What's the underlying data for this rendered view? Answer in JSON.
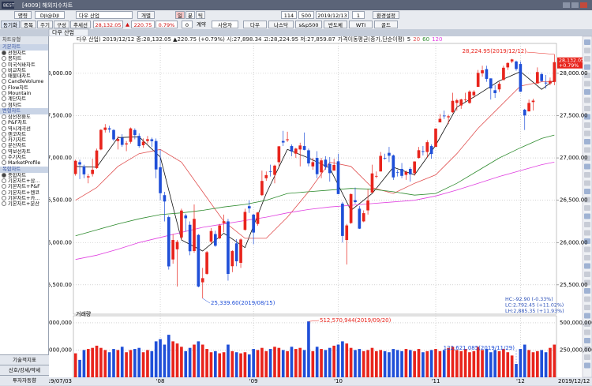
{
  "window": {
    "brand": "BEST",
    "title": "[4009] 해외지수차트"
  },
  "toolbar": {
    "row1": [
      "명령",
      "DJI@DJI",
      "다우 산업",
      "개별",
      "일",
      "분",
      "틱",
      "114",
      "500",
      "2019/12/13",
      "1",
      "환경설정"
    ],
    "row2": [
      "동기화",
      "종목",
      "주기",
      "구성",
      "추세선",
      "28,132.05",
      "▲",
      "220.75",
      "0.79%",
      "0",
      "계약",
      "사용자",
      "다우",
      "나스닥",
      "s&p500",
      "반도체",
      "WTI",
      "골드"
    ]
  },
  "tab": "다우 산업",
  "sidebar": {
    "header": "차트유형",
    "sections": [
      {
        "title": "기본차트",
        "items": [
          "선형차트",
          "봉차트",
          "미국식바차트",
          "비교차트",
          "매물대차트",
          "CandleVolume",
          "Flow차트",
          "Mountain",
          "계단차트",
          "점차트"
        ]
      },
      {
        "title": "변형차트",
        "items": [
          "삼선전환도",
          "P&F차트",
          "역시계곡선",
          "렌코차트",
          "카기차트",
          "분산차트",
          "역보선차트",
          "주기차트",
          "MarketProfile"
        ]
      },
      {
        "title": "복합차트",
        "items": [
          "종합차트",
          "기본차트+삼...",
          "기본차트+P&F",
          "기본차트+렌코",
          "기본차트+카...",
          "기본차트+분산"
        ]
      }
    ],
    "buttons": [
      "기술적지표",
      "신호/강세/약세",
      "투자자동향"
    ]
  },
  "chart_data": {
    "type": "candlestick",
    "title": "다우 산업) 2019/12/12 종:28,132.05 ▲220.75 (+0.79%) 시:27,898.34 고:28,224.95 저:27,859.87",
    "ma_label": "가격이동평균(종가,단순이평)",
    "up_color": "#e8241c",
    "down_color": "#1f4fd8",
    "grid": true,
    "ylim": [
      25200,
      28400
    ],
    "yticks": [
      {
        "value": 25500,
        "label": "25,500.00"
      },
      {
        "value": 26000,
        "label": "26,000.00"
      },
      {
        "value": 26500,
        "label": "26,500.00"
      },
      {
        "value": 27000,
        "label": "27,000.00"
      },
      {
        "value": 27500,
        "label": "27,500.00"
      },
      {
        "value": 28000,
        "label": "28,000.00"
      }
    ],
    "categories": [
      "2019/07/03",
      null,
      null,
      null,
      null,
      null,
      null,
      null,
      null,
      null,
      null,
      null,
      null,
      null,
      null,
      null,
      null,
      null,
      null,
      null,
      "'08",
      null,
      null,
      null,
      null,
      null,
      null,
      null,
      null,
      null,
      null,
      null,
      null,
      null,
      null,
      null,
      null,
      null,
      null,
      null,
      null,
      null,
      "'09",
      null,
      null,
      null,
      null,
      null,
      null,
      null,
      null,
      null,
      null,
      null,
      null,
      null,
      null,
      null,
      null,
      null,
      null,
      null,
      "'10",
      null,
      null,
      null,
      null,
      null,
      null,
      null,
      null,
      null,
      null,
      null,
      null,
      null,
      null,
      null,
      null,
      null,
      null,
      null,
      null,
      null,
      null,
      "'11",
      null,
      null,
      null,
      null,
      null,
      null,
      null,
      null,
      null,
      null,
      null,
      null,
      null,
      null,
      null,
      null,
      null,
      null,
      null,
      "'12",
      null,
      null,
      null,
      null,
      null,
      null,
      null,
      "2019/12/12"
    ],
    "ohlc": [
      [
        26810,
        26980,
        26790,
        26966
      ],
      [
        26950,
        26980,
        26750,
        26922
      ],
      [
        26900,
        26920,
        26760,
        26806
      ],
      [
        26770,
        26810,
        26700,
        26783
      ],
      [
        26810,
        26990,
        26780,
        26860
      ],
      [
        26880,
        27110,
        26870,
        27088
      ],
      [
        27100,
        27340,
        27090,
        27332
      ],
      [
        27330,
        27400,
        27300,
        27359
      ],
      [
        27350,
        27380,
        27300,
        27336
      ],
      [
        27330,
        27340,
        27200,
        27219
      ],
      [
        27200,
        27260,
        27100,
        27223
      ],
      [
        27240,
        27280,
        27130,
        27154
      ],
      [
        27160,
        27200,
        27080,
        27172
      ],
      [
        27190,
        27360,
        27170,
        27349
      ],
      [
        27330,
        27350,
        27220,
        27270
      ],
      [
        27260,
        27290,
        27120,
        27140
      ],
      [
        27150,
        27230,
        27120,
        27192
      ],
      [
        27200,
        27260,
        27170,
        27221
      ],
      [
        27220,
        27240,
        27130,
        27198
      ],
      [
        27200,
        27230,
        26760,
        26864
      ],
      [
        26890,
        27100,
        26500,
        26583
      ],
      [
        26560,
        26600,
        26250,
        26485
      ],
      [
        26300,
        26320,
        25680,
        25718
      ],
      [
        25800,
        26100,
        25750,
        26030
      ],
      [
        25920,
        26030,
        25480,
        26008
      ],
      [
        26060,
        26400,
        26030,
        26378
      ],
      [
        26320,
        26340,
        26130,
        26287
      ],
      [
        26210,
        26250,
        25850,
        25897
      ],
      [
        25900,
        26450,
        25880,
        26280
      ],
      [
        26090,
        26100,
        25470,
        25480
      ],
      [
        25530,
        25700,
        25339.6,
        25579
      ],
      [
        25630,
        25900,
        25620,
        25886
      ],
      [
        26010,
        26170,
        25990,
        26136
      ],
      [
        26100,
        26140,
        25950,
        25962
      ],
      [
        26050,
        26220,
        26040,
        26202
      ],
      [
        26230,
        26330,
        26120,
        26252
      ],
      [
        26250,
        26280,
        25550,
        25629
      ],
      [
        25720,
        25910,
        25650,
        25899
      ],
      [
        25990,
        26040,
        25720,
        25778
      ],
      [
        25760,
        26050,
        25700,
        26036
      ],
      [
        26150,
        26400,
        26140,
        26362
      ],
      [
        26430,
        26500,
        26350,
        26403
      ],
      [
        26330,
        26340,
        25980,
        26118
      ],
      [
        26220,
        26360,
        26200,
        26355
      ],
      [
        26560,
        26850,
        26550,
        26728
      ],
      [
        26760,
        26840,
        26730,
        26797
      ],
      [
        26840,
        26920,
        26780,
        26835
      ],
      [
        26800,
        26920,
        26700,
        26909
      ],
      [
        26950,
        27140,
        26900,
        27137
      ],
      [
        27200,
        27320,
        27140,
        27182
      ],
      [
        27210,
        27310,
        27190,
        27220
      ],
      [
        27140,
        27160,
        27020,
        27076
      ],
      [
        27050,
        27120,
        27000,
        27110
      ],
      [
        27100,
        27180,
        26900,
        27147
      ],
      [
        27140,
        27300,
        27090,
        27095
      ],
      [
        27090,
        27110,
        26900,
        26935
      ],
      [
        26900,
        27000,
        26860,
        26950
      ],
      [
        27000,
        27080,
        26760,
        26808
      ],
      [
        26830,
        27000,
        26760,
        26971
      ],
      [
        26980,
        27020,
        26860,
        26891
      ],
      [
        26930,
        27010,
        26720,
        26820
      ],
      [
        26850,
        26990,
        26850,
        26917
      ],
      [
        26960,
        27050,
        26570,
        26573
      ],
      [
        26460,
        26480,
        26000,
        26078
      ],
      [
        26030,
        26220,
        25740,
        26202
      ],
      [
        26230,
        26580,
        26220,
        26573
      ],
      [
        26500,
        26650,
        26460,
        26478
      ],
      [
        26400,
        26430,
        26160,
        26164
      ],
      [
        26250,
        26380,
        26240,
        26347
      ],
      [
        26380,
        26630,
        26330,
        26497
      ],
      [
        26590,
        26920,
        26590,
        26817
      ],
      [
        26780,
        26840,
        26760,
        26787
      ],
      [
        26840,
        27070,
        26840,
        27024
      ],
      [
        27000,
        27050,
        26980,
        26999
      ],
      [
        27060,
        27130,
        26950,
        27026
      ],
      [
        27030,
        27040,
        26740,
        26770
      ],
      [
        26830,
        26860,
        26780,
        26827
      ],
      [
        26870,
        26940,
        26760,
        26788
      ],
      [
        26800,
        26850,
        26740,
        26834
      ],
      [
        26870,
        26890,
        26720,
        26806
      ],
      [
        26820,
        26960,
        26790,
        26958
      ],
      [
        27000,
        27130,
        26990,
        27091
      ],
      [
        27080,
        27140,
        27030,
        27071
      ],
      [
        27070,
        27210,
        27000,
        27186
      ],
      [
        27140,
        27160,
        26990,
        27046
      ],
      [
        27130,
        27350,
        27130,
        27347
      ],
      [
        27420,
        27520,
        27420,
        27462
      ],
      [
        27500,
        27560,
        27460,
        27492
      ],
      [
        27480,
        27510,
        27400,
        27492
      ],
      [
        27540,
        27770,
        27530,
        27675
      ],
      [
        27650,
        27700,
        27560,
        27681
      ],
      [
        27620,
        27700,
        27580,
        27691
      ],
      [
        27690,
        27770,
        27660,
        27691
      ],
      [
        27650,
        27800,
        27640,
        27784
      ],
      [
        27740,
        27800,
        27710,
        27782
      ],
      [
        27840,
        28040,
        27840,
        28005
      ],
      [
        28000,
        28090,
        27960,
        28036
      ],
      [
        28050,
        28090,
        27900,
        27934
      ],
      [
        27940,
        27940,
        27690,
        27821
      ],
      [
        27800,
        27860,
        27710,
        27766
      ],
      [
        27810,
        27900,
        27780,
        27876
      ],
      [
        27920,
        28090,
        27920,
        28066
      ],
      [
        28070,
        28130,
        28040,
        28122
      ],
      [
        28140,
        28170,
        28120,
        28164
      ],
      [
        28140,
        28150,
        28030,
        28051
      ],
      [
        28110,
        28140,
        27780,
        27783
      ],
      [
        27570,
        27580,
        27330,
        27502
      ],
      [
        27550,
        27690,
        27550,
        27650
      ],
      [
        27660,
        27700,
        27560,
        27677
      ],
      [
        27880,
        28070,
        27880,
        28015
      ],
      [
        27990,
        28010,
        27900,
        27909
      ],
      [
        27890,
        27980,
        27820,
        27881
      ],
      [
        27880,
        27950,
        27860,
        27911
      ],
      [
        27898.34,
        28224.95,
        27859.87,
        28132.05
      ]
    ],
    "ma_x": [
      0,
      5,
      10,
      15,
      20,
      25,
      30,
      35,
      40,
      45,
      50,
      55,
      60,
      65,
      70,
      75,
      80,
      85,
      90,
      95,
      100,
      105,
      110,
      113
    ],
    "ma": [
      {
        "name": "5",
        "color": "#111111",
        "values": [
          26900,
          26890,
          27240,
          27250,
          27010,
          26030,
          25900,
          26110,
          25940,
          26580,
          27100,
          27000,
          26880,
          26380,
          26580,
          26890,
          26800,
          27150,
          27600,
          27750,
          27910,
          28020,
          27810,
          27920
        ]
      },
      {
        "name": "20",
        "color": "#e05050",
        "values": [
          26500,
          26650,
          26900,
          27050,
          27100,
          26950,
          26600,
          26250,
          26050,
          26050,
          26300,
          26600,
          26950,
          26900,
          26650,
          26580,
          26700,
          26800,
          27050,
          27350,
          27600,
          27850,
          27900,
          27900
        ]
      },
      {
        "name": "60",
        "color": "#2e8b2e",
        "values": [
          26080,
          26150,
          26220,
          26280,
          26330,
          26350,
          26380,
          26420,
          26450,
          26500,
          26580,
          26600,
          26620,
          26640,
          26630,
          26600,
          26560,
          26580,
          26700,
          26850,
          27000,
          27120,
          27230,
          27270
        ]
      },
      {
        "name": "120",
        "color": "#e040e0",
        "values": [
          25800,
          25850,
          25920,
          26000,
          26060,
          26120,
          26180,
          26220,
          26260,
          26300,
          26350,
          26390,
          26420,
          26440,
          26460,
          26480,
          26500,
          26550,
          26620,
          26700,
          26780,
          26850,
          26920,
          26950
        ]
      }
    ],
    "annotations": [
      "28,224.95(2019/12/12)",
      "25,339.60(2019/08/15)",
      "512,570,944(2019/09/20)",
      "122,621,085(2019/11/29)"
    ],
    "last_tag": [
      "28,132.05",
      "+0.79%"
    ],
    "stats": [
      "HC:-92.90 (-0.33%)",
      "LC:2,792.45 (+11.02%)",
      "LH:2,885.35 (+11.93%)"
    ],
    "volume": {
      "label": "거래량",
      "ylim": [
        0,
        550000000
      ],
      "yticks": [
        {
          "value": 250000000,
          "label": "250,000,000"
        },
        {
          "value": 500000000,
          "label": "500,000,000"
        }
      ],
      "values": [
        220000000.0,
        160000000.0,
        250000000.0,
        260000000.0,
        270000000.0,
        290000000.0,
        270000000.0,
        250000000.0,
        230000000.0,
        260000000.0,
        250000000.0,
        280000000.0,
        230000000.0,
        250000000.0,
        260000000.0,
        270000000.0,
        230000000.0,
        250000000.0,
        240000000.0,
        330000000.0,
        350000000.0,
        300000000.0,
        390000000.0,
        330000000.0,
        310000000.0,
        280000000.0,
        240000000.0,
        270000000.0,
        300000000.0,
        330000000.0,
        300000000.0,
        260000000.0,
        230000000.0,
        240000000.0,
        220000000.0,
        230000000.0,
        300000000.0,
        240000000.0,
        230000000.0,
        220000000.0,
        230000000.0,
        210000000.0,
        260000000.0,
        250000000.0,
        270000000.0,
        240000000.0,
        260000000.0,
        280000000.0,
        270000000.0,
        250000000.0,
        240000000.0,
        280000000.0,
        260000000.0,
        270000000.0,
        250000000.0,
        512570944,
        240000000.0,
        280000000.0,
        260000000.0,
        250000000.0,
        270000000.0,
        290000000.0,
        300000000.0,
        330000000.0,
        310000000.0,
        270000000.0,
        250000000.0,
        260000000.0,
        240000000.0,
        250000000.0,
        270000000.0,
        240000000.0,
        250000000.0,
        240000000.0,
        230000000.0,
        260000000.0,
        250000000.0,
        240000000.0,
        260000000.0,
        250000000.0,
        240000000.0,
        260000000.0,
        230000000.0,
        240000000.0,
        250000000.0,
        260000000.0,
        240000000.0,
        250000000.0,
        270000000.0,
        280000000.0,
        250000000.0,
        240000000.0,
        260000000.0,
        230000000.0,
        240000000.0,
        280000000.0,
        250000000.0,
        260000000.0,
        230000000.0,
        250000000.0,
        240000000.0,
        260000000.0,
        230000000.0,
        200000000.0,
        122621085,
        260000000.0,
        300000000.0,
        250000000.0,
        230000000.0,
        240000000.0,
        250000000.0,
        230000000.0,
        270000000.0,
        300000000.0
      ]
    }
  }
}
